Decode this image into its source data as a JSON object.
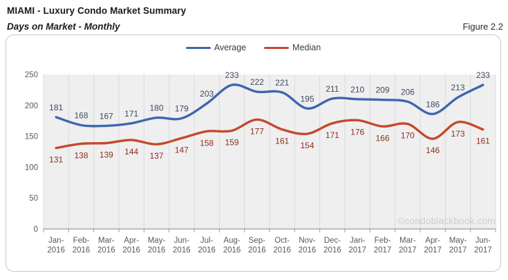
{
  "header": {
    "title": "MIAMI - Luxury Condo Market Summary",
    "subtitle": "Days on Market - Monthly",
    "figure_label": "Figure 2.2"
  },
  "watermark": "©condoblackbook.com",
  "legend": [
    {
      "label": "Average",
      "color": "#3e66ae"
    },
    {
      "label": "Median",
      "color": "#c6482c"
    }
  ],
  "colors": {
    "plot_background": "#efefef",
    "gridline": "#d9d9d9",
    "axis": "#9a9a9a",
    "tick_label": "#595959",
    "watermark": "#cfcfcf",
    "average_line": "#3e66ae",
    "average_label": "#3e4a61",
    "median_line": "#c6482c",
    "median_label": "#8f2c20"
  },
  "chart_data": {
    "type": "line",
    "title": "Days on Market - Monthly",
    "categories": [
      "Jan-2016",
      "Feb-2016",
      "Mar-2016",
      "Apr-2016",
      "May-2016",
      "Jun-2016",
      "Jul-2016",
      "Aug-2016",
      "Sep-2016",
      "Oct-2016",
      "Nov-2016",
      "Dec-2016",
      "Jan-2017",
      "Feb-2017",
      "Mar-2017",
      "Apr-2017",
      "May-2017",
      "Jun-2017"
    ],
    "series": [
      {
        "name": "Average",
        "color": "#3e66ae",
        "label_color": "#3e4a61",
        "values": [
          181,
          168,
          167,
          171,
          180,
          179,
          203,
          233,
          222,
          221,
          195,
          211,
          210,
          209,
          206,
          186,
          213,
          233
        ]
      },
      {
        "name": "Median",
        "color": "#c6482c",
        "label_color": "#8f2c20",
        "values": [
          131,
          138,
          139,
          144,
          137,
          147,
          158,
          159,
          177,
          161,
          154,
          171,
          176,
          166,
          170,
          146,
          173,
          161
        ]
      }
    ],
    "xlabel": "",
    "ylabel": "",
    "ylim": [
      0,
      250
    ],
    "y_ticks": [
      0,
      50,
      100,
      150,
      200,
      250
    ],
    "grid": "vertical",
    "data_labels": true,
    "legend_position": "top-center",
    "smooth": true
  }
}
